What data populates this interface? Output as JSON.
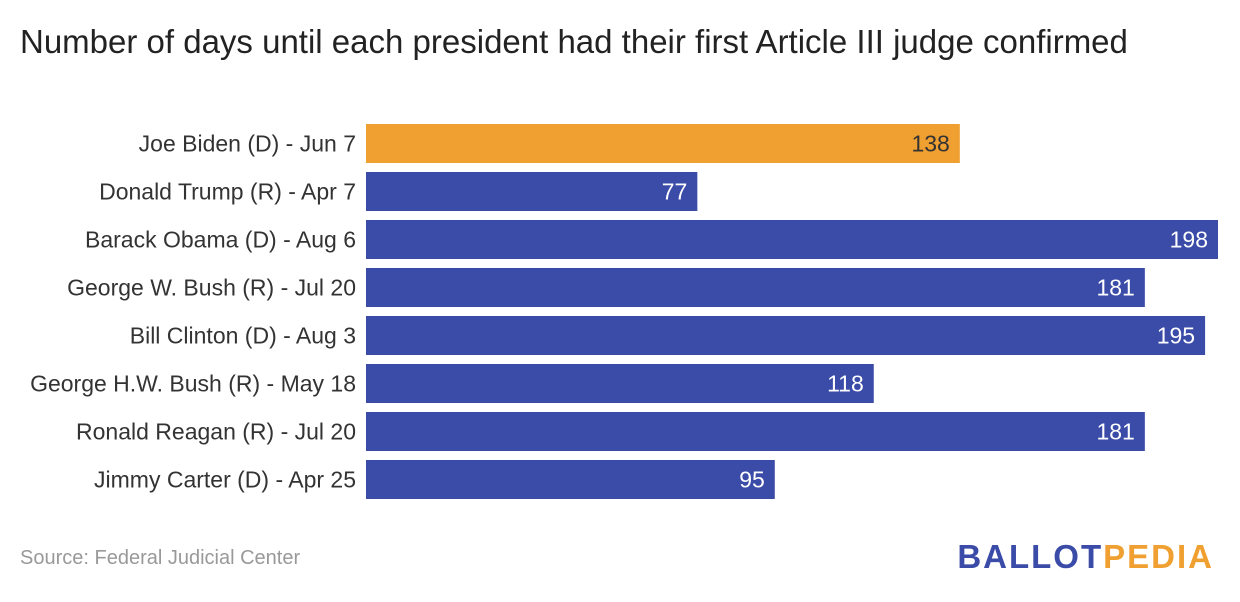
{
  "chart_data": {
    "type": "bar",
    "orientation": "horizontal",
    "title": "Number of days until each president had their first Article III judge confirmed",
    "categories": [
      "Joe Biden (D) - Jun 7",
      "Donald Trump (R) - Apr 7",
      "Barack Obama (D) - Aug 6",
      "George W. Bush (R) - Jul 20",
      "Bill Clinton (D) - Aug 3",
      "George H.W. Bush (R) - May 18",
      "Ronald Reagan (R) - Jul 20",
      "Jimmy Carter (D) - Apr 25"
    ],
    "values": [
      138,
      77,
      198,
      181,
      195,
      118,
      181,
      95
    ],
    "colors": [
      "#f0a030",
      "#3a4ba8",
      "#3a4ba8",
      "#3a4ba8",
      "#3a4ba8",
      "#3a4ba8",
      "#3a4ba8",
      "#3a4ba8"
    ],
    "xlim": [
      0,
      198
    ],
    "grid": false,
    "legend": "none"
  },
  "footer": {
    "source": "Source: Federal Judicial Center",
    "logo_part1": "BALLOT",
    "logo_part2": "PEDIA"
  },
  "colors": {
    "highlight": "#f0a030",
    "bar": "#3a4ba8",
    "logo_blue": "#3a4ba8",
    "logo_orange": "#f0a030"
  }
}
